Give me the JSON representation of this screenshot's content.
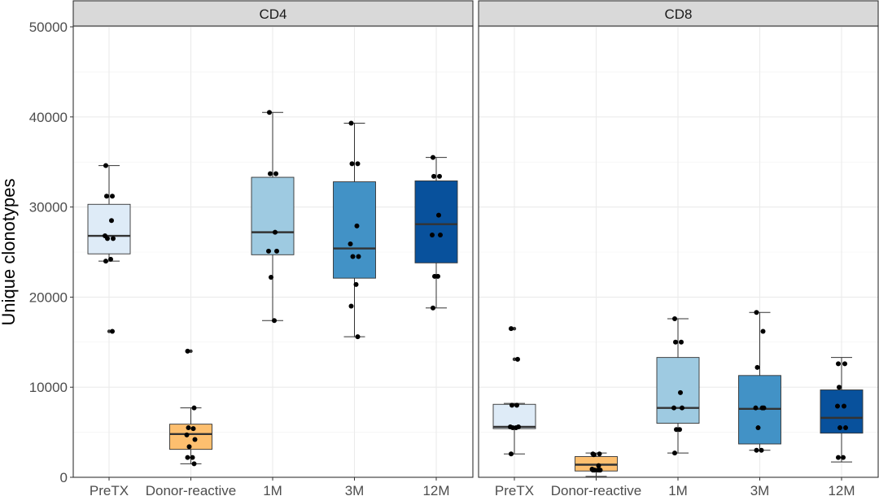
{
  "chart_data": {
    "type": "boxplot",
    "ylabel": "Unique clonotypes",
    "xlabel": "",
    "ylim": [
      0,
      50000
    ],
    "yticks": [
      0,
      10000,
      20000,
      30000,
      40000,
      50000
    ],
    "categories": [
      "PreTX",
      "Donor-reactive",
      "1M",
      "3M",
      "12M"
    ],
    "category_colors": [
      "#DEEBF7",
      "#FDBF6F",
      "#9ECAE1",
      "#4292C6",
      "#08519C"
    ],
    "grid": true,
    "legend": "none",
    "panels": [
      {
        "title": "CD4",
        "boxes": [
          {
            "category": "PreTX",
            "min": 24000,
            "q1": 24800,
            "median": 26800,
            "q3": 30300,
            "max": 34600,
            "outliers": [
              16200
            ],
            "points": [
              34600,
              31200,
              31200,
              28500,
              26800,
              26500,
              26500,
              24200,
              24000,
              16200
            ]
          },
          {
            "category": "Donor-reactive",
            "min": 1500,
            "q1": 3100,
            "median": 4800,
            "q3": 5900,
            "max": 7700,
            "outliers": [
              14000
            ],
            "points": [
              14000,
              7700,
              5500,
              5400,
              4700,
              4200,
              3400,
              2200,
              2200,
              1500
            ]
          },
          {
            "category": "1M",
            "min": 17400,
            "q1": 24700,
            "median": 27200,
            "q3": 33300,
            "max": 40500,
            "outliers": [],
            "points": [
              40500,
              33700,
              33700,
              27200,
              25100,
              25100,
              22200,
              17400
            ]
          },
          {
            "category": "3M",
            "min": 15600,
            "q1": 22100,
            "median": 25400,
            "q3": 32800,
            "max": 39300,
            "outliers": [],
            "points": [
              39300,
              34800,
              34800,
              27900,
              25900,
              24500,
              24500,
              21400,
              19000,
              15600
            ]
          },
          {
            "category": "12M",
            "min": 18800,
            "q1": 23800,
            "median": 28100,
            "q3": 32900,
            "max": 35500,
            "outliers": [],
            "points": [
              35500,
              33400,
              33400,
              29100,
              26900,
              26900,
              22300,
              22300,
              18800
            ]
          }
        ]
      },
      {
        "title": "CD8",
        "boxes": [
          {
            "category": "PreTX",
            "min": 2600,
            "q1": 5400,
            "median": 5600,
            "q3": 8100,
            "max": 8200,
            "outliers": [
              13100,
              16500
            ],
            "points": [
              16500,
              13100,
              8000,
              8000,
              5600,
              5600,
              5500,
              5500,
              2600
            ]
          },
          {
            "category": "Donor-reactive",
            "min": 100,
            "q1": 700,
            "median": 1400,
            "q3": 2300,
            "max": 2700,
            "outliers": [],
            "points": [
              2600,
              2600,
              2500,
              1300,
              900,
              800,
              800,
              800,
              800,
              800
            ]
          },
          {
            "category": "1M",
            "min": 2700,
            "q1": 6000,
            "median": 7700,
            "q3": 13300,
            "max": 17600,
            "outliers": [],
            "points": [
              17600,
              15000,
              15000,
              9400,
              7700,
              7700,
              5300,
              5300,
              2700
            ]
          },
          {
            "category": "3M",
            "min": 3000,
            "q1": 3700,
            "median": 7600,
            "q3": 11300,
            "max": 18300,
            "outliers": [],
            "points": [
              18300,
              16200,
              12200,
              7700,
              7700,
              7700,
              5500,
              3000,
              3000
            ]
          },
          {
            "category": "12M",
            "min": 1700,
            "q1": 4900,
            "median": 6600,
            "q3": 9700,
            "max": 13300,
            "outliers": [],
            "points": [
              12600,
              12600,
              10000,
              7900,
              7900,
              5500,
              5500,
              2200,
              2200
            ]
          }
        ]
      }
    ]
  }
}
